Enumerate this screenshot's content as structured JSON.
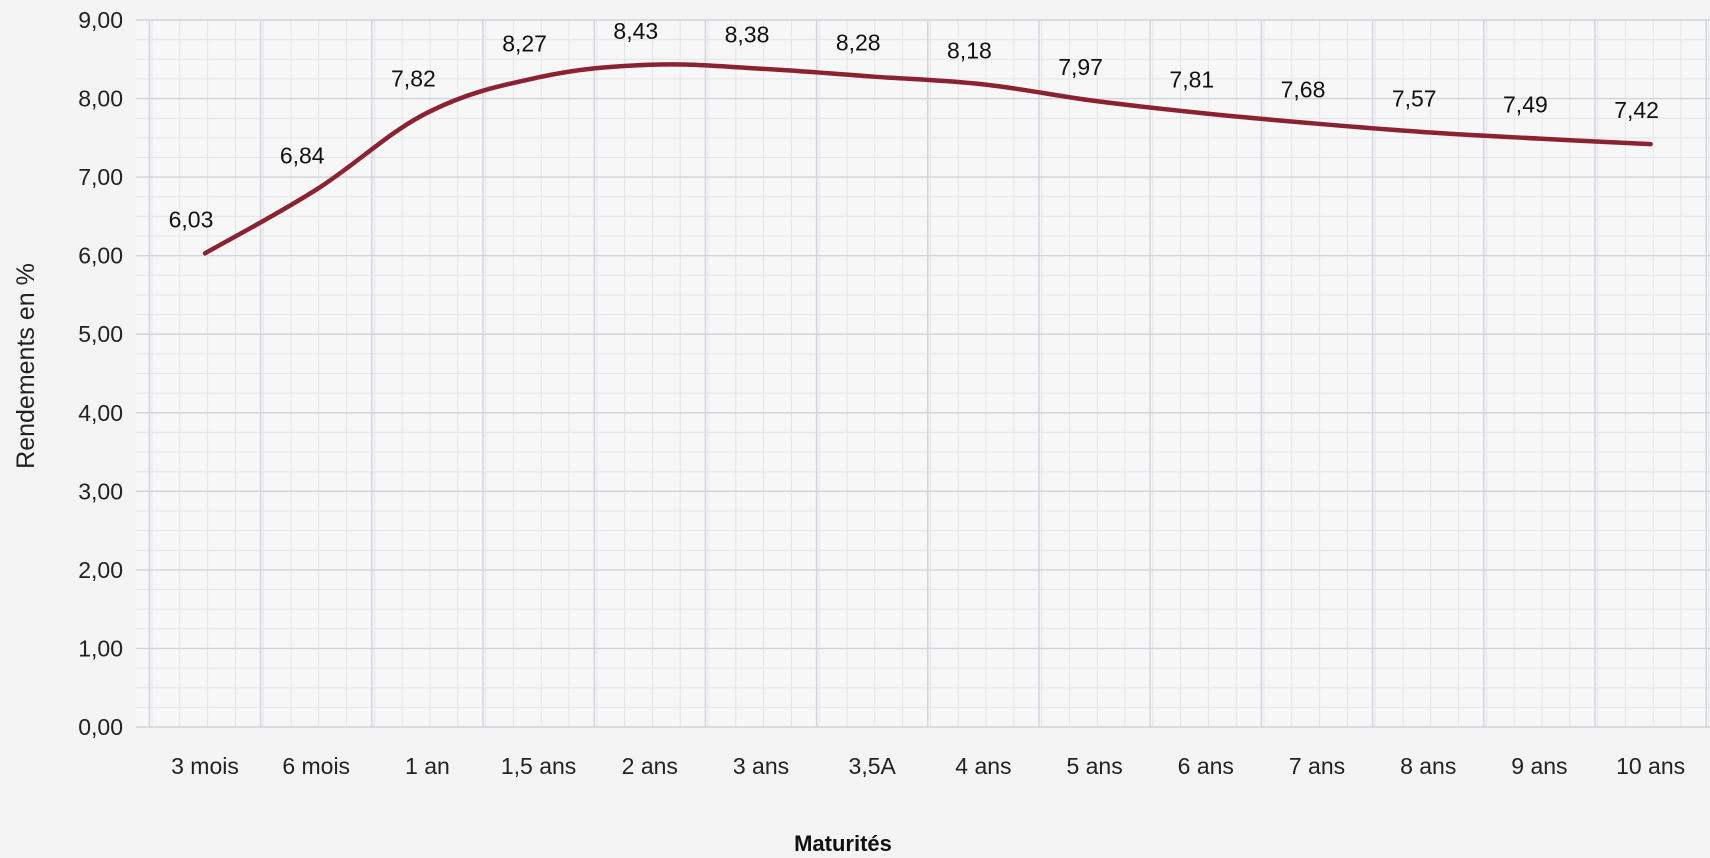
{
  "chart_data": {
    "type": "line",
    "title": "",
    "xlabel": "Maturités",
    "ylabel": "Rendements en %",
    "categories": [
      "3 mois",
      "6 mois",
      "1 an",
      "1,5 ans",
      "2 ans",
      "3 ans",
      "3,5A",
      "4 ans",
      "5 ans",
      "6 ans",
      "7 ans",
      "8 ans",
      "9 ans",
      "10 ans"
    ],
    "series": [
      {
        "values": [
          6.03,
          6.84,
          7.82,
          8.27,
          8.43,
          8.38,
          8.28,
          8.18,
          7.97,
          7.81,
          7.68,
          7.57,
          7.49,
          7.42
        ],
        "labels": [
          "6,03",
          "6,84",
          "7,82",
          "8,27",
          "8,43",
          "8,38",
          "8,28",
          "8,18",
          "7,97",
          "7,81",
          "7,68",
          "7,57",
          "7,49",
          "7,42"
        ],
        "color": "#8b2232"
      }
    ],
    "yticks": [
      "0,00",
      "1,00",
      "2,00",
      "3,00",
      "4,00",
      "5,00",
      "6,00",
      "7,00",
      "8,00",
      "9,00"
    ],
    "ylim": [
      0,
      9
    ],
    "grid": true,
    "smooth": true,
    "legend": "none"
  }
}
